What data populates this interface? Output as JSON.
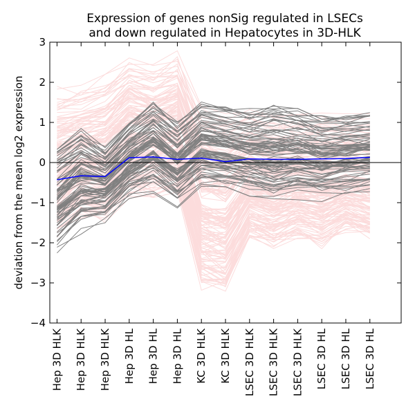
{
  "chart_data": {
    "type": "line",
    "title": [
      "Expression of genes nonSig regulated in LSECs",
      "and down regulated in Hepatocytes in 3D-HLK"
    ],
    "xlabel": "",
    "ylabel": "deviation from the mean log2 expression",
    "categories": [
      "Hep 3D HLK",
      "Hep 3D HLK",
      "Hep 3D HLK",
      "Hep 3D HL",
      "Hep 3D HL",
      "Hep 3D HL",
      "KC 3D HLK",
      "KC 3D HLK",
      "LSEC 3D HLK",
      "LSEC 3D HLK",
      "LSEC 3D HLK",
      "LSEC 3D HL",
      "LSEC 3D HL",
      "LSEC 3D HL"
    ],
    "ylim": [
      -4,
      3
    ],
    "yticks": [
      "3",
      "2",
      "1",
      "0",
      "−1",
      "−2",
      "−3",
      "−4"
    ],
    "xlim": [
      -0.3,
      14.3
    ],
    "grid": false,
    "colors": {
      "pink_series": "#fcdcdc",
      "gray_series": "#808080",
      "mean_line": "#0000ff",
      "zero_line": "#000000"
    },
    "mean_series": {
      "values": [
        -0.43,
        -0.33,
        -0.35,
        0.12,
        0.14,
        0.08,
        0.11,
        0.02,
        0.09,
        0.08,
        0.08,
        0.09,
        0.1,
        0.13
      ]
    },
    "gray_series_envelope": {
      "upper": [
        0.4,
        0.85,
        0.4,
        1.0,
        1.55,
        1.05,
        1.6,
        1.45,
        1.35,
        1.5,
        1.4,
        1.2,
        1.2,
        1.25
      ],
      "lower": [
        -2.45,
        -1.9,
        -1.6,
        -1.05,
        -0.85,
        -1.25,
        -0.8,
        -0.85,
        -1.0,
        -1.2,
        -1.0,
        -1.05,
        -0.95,
        -0.85
      ]
    },
    "pink_series_envelope": {
      "upper": [
        1.9,
        1.95,
        2.2,
        2.7,
        2.5,
        2.8,
        1.4,
        1.3,
        1.4,
        1.3,
        1.2,
        1.3,
        1.25,
        1.25
      ],
      "lower": [
        -1.9,
        -1.4,
        -1.5,
        -0.9,
        -0.9,
        -0.75,
        -3.2,
        -3.35,
        -2.0,
        -2.2,
        -1.9,
        -2.15,
        -1.75,
        -1.95
      ]
    }
  }
}
